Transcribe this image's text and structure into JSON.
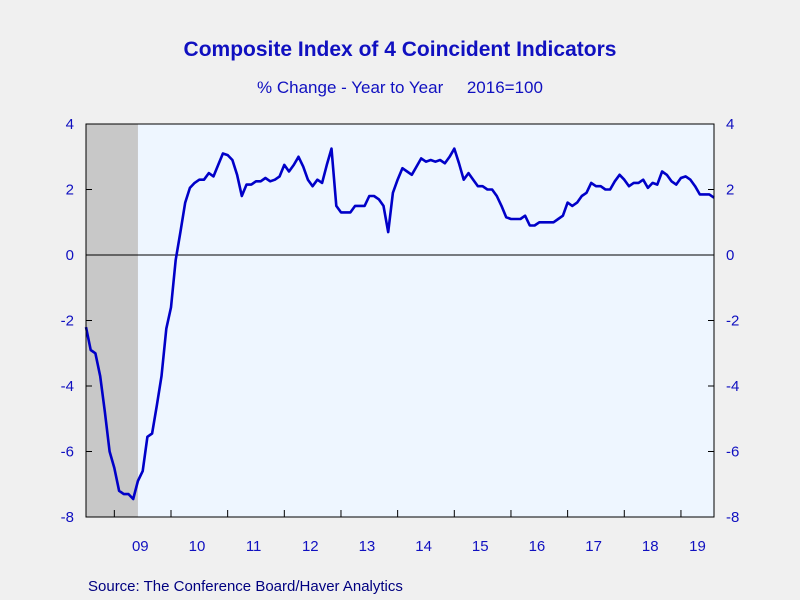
{
  "chart_data": {
    "type": "line",
    "title": "Composite Index of 4 Coincident Indicators",
    "subtitle": "% Change - Year to Year     2016=100",
    "source": "Source:  The Conference Board/Haver Analytics",
    "xlabel": "",
    "ylabel": "",
    "ylim": [
      -8,
      4
    ],
    "y_ticks": [
      -8,
      -6,
      -4,
      -2,
      0,
      2,
      4
    ],
    "y_tick_labels": [
      "-8",
      "-6",
      "-4",
      "-2",
      "0",
      "2",
      "4"
    ],
    "x_range": [
      "2008-07",
      "2019-08"
    ],
    "x_tick_labels": [
      "09",
      "10",
      "11",
      "12",
      "13",
      "14",
      "15",
      "16",
      "17",
      "18",
      "19"
    ],
    "recession_shading": {
      "start": "2008-07",
      "end": "2009-06",
      "color": "#c8c8c8"
    },
    "plot_background": "#eef6ff",
    "line_color": "#0000c8",
    "series": [
      {
        "x": [
          "2008-07",
          "2008-08",
          "2008-09",
          "2008-10",
          "2008-11",
          "2008-12",
          "2009-01",
          "2009-02",
          "2009-03",
          "2009-04",
          "2009-05",
          "2009-06",
          "2009-07",
          "2009-08",
          "2009-09",
          "2009-10",
          "2009-11",
          "2009-12",
          "2010-01",
          "2010-02",
          "2010-03",
          "2010-04",
          "2010-05",
          "2010-06",
          "2010-07",
          "2010-08",
          "2010-09",
          "2010-10",
          "2010-11",
          "2010-12",
          "2011-01",
          "2011-02",
          "2011-03",
          "2011-04",
          "2011-05",
          "2011-06",
          "2011-07",
          "2011-08",
          "2011-09",
          "2011-10",
          "2011-11",
          "2011-12",
          "2012-01",
          "2012-02",
          "2012-03",
          "2012-04",
          "2012-05",
          "2012-06",
          "2012-07",
          "2012-08",
          "2012-09",
          "2012-10",
          "2012-11",
          "2012-12",
          "2013-01",
          "2013-02",
          "2013-03",
          "2013-04",
          "2013-05",
          "2013-06",
          "2013-07",
          "2013-08",
          "2013-09",
          "2013-10",
          "2013-11",
          "2013-12",
          "2014-01",
          "2014-02",
          "2014-03",
          "2014-04",
          "2014-05",
          "2014-06",
          "2014-07",
          "2014-08",
          "2014-09",
          "2014-10",
          "2014-11",
          "2014-12",
          "2015-01",
          "2015-02",
          "2015-03",
          "2015-04",
          "2015-05",
          "2015-06",
          "2015-07",
          "2015-08",
          "2015-09",
          "2015-10",
          "2015-11",
          "2015-12",
          "2016-01",
          "2016-02",
          "2016-03",
          "2016-04",
          "2016-05",
          "2016-06",
          "2016-07",
          "2016-08",
          "2016-09",
          "2016-10",
          "2016-11",
          "2016-12",
          "2017-01",
          "2017-02",
          "2017-03",
          "2017-04",
          "2017-05",
          "2017-06",
          "2017-07",
          "2017-08",
          "2017-09",
          "2017-10",
          "2017-11",
          "2017-12",
          "2018-01",
          "2018-02",
          "2018-03",
          "2018-04",
          "2018-05",
          "2018-06",
          "2018-07",
          "2018-08",
          "2018-09",
          "2018-10",
          "2018-11",
          "2018-12",
          "2019-01",
          "2019-02",
          "2019-03",
          "2019-04",
          "2019-05",
          "2019-06",
          "2019-07",
          "2019-08"
        ],
        "values": [
          -2.2,
          -2.9,
          -3.0,
          -3.7,
          -4.8,
          -6.0,
          -6.5,
          -7.2,
          -7.3,
          -7.3,
          -7.45,
          -6.9,
          -6.6,
          -5.55,
          -5.45,
          -4.6,
          -3.7,
          -2.25,
          -1.6,
          -0.15,
          0.7,
          1.6,
          2.05,
          2.2,
          2.3,
          2.3,
          2.5,
          2.4,
          2.75,
          3.1,
          3.05,
          2.9,
          2.45,
          1.8,
          2.15,
          2.15,
          2.25,
          2.25,
          2.35,
          2.25,
          2.3,
          2.4,
          2.75,
          2.55,
          2.75,
          3.0,
          2.7,
          2.3,
          2.1,
          2.3,
          2.2,
          2.75,
          3.25,
          1.5,
          1.3,
          1.3,
          1.3,
          1.5,
          1.5,
          1.5,
          1.8,
          1.8,
          1.7,
          1.5,
          0.7,
          1.9,
          2.3,
          2.65,
          2.55,
          2.45,
          2.7,
          2.95,
          2.85,
          2.9,
          2.85,
          2.9,
          2.8,
          3.0,
          3.25,
          2.8,
          2.3,
          2.5,
          2.3,
          2.1,
          2.1,
          2.0,
          2.0,
          1.8,
          1.5,
          1.15,
          1.1,
          1.1,
          1.1,
          1.2,
          0.9,
          0.9,
          1.0,
          1.0,
          1.0,
          1.0,
          1.1,
          1.2,
          1.6,
          1.5,
          1.6,
          1.8,
          1.9,
          2.2,
          2.1,
          2.1,
          2.0,
          2.0,
          2.25,
          2.45,
          2.3,
          2.1,
          2.2,
          2.2,
          2.3,
          2.05,
          2.2,
          2.15,
          2.55,
          2.45,
          2.25,
          2.15,
          2.35,
          2.4,
          2.3,
          2.1,
          1.85,
          1.85,
          1.85,
          1.75
        ]
      }
    ]
  }
}
